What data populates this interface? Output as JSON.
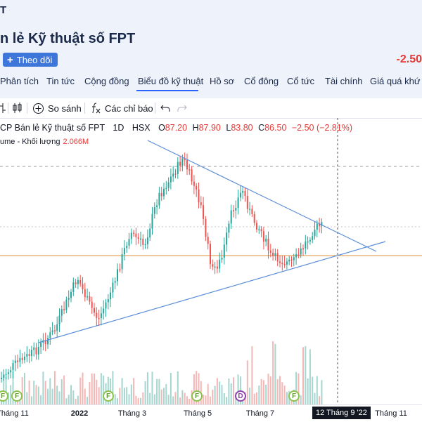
{
  "header": {
    "brand": "T",
    "company": "n lẻ Kỹ thuật số FPT",
    "follow_label": "Theo dõi",
    "change": "-2.50"
  },
  "nav": {
    "tabs": [
      "Phân tích",
      "Tin tức",
      "Cộng đồng",
      "Biểu đồ kỹ thuật",
      "Hồ sơ",
      "Cổ đông",
      "Cổ tức",
      "Tài chính",
      "Giá quá khứ"
    ],
    "active_tab": "Biểu đồ kỹ thuật"
  },
  "toolbar": {
    "compare_label": "So sánh",
    "indicators_label": "Các chỉ báo",
    "icons": [
      "candle-style-icon",
      "plus-circle-icon",
      "fx-icon",
      "undo-icon",
      "redo-icon"
    ]
  },
  "legend": {
    "symbol": "CP Bán lẻ Kỹ thuật số FPT",
    "interval": "1D",
    "exchange": "HSX",
    "o_label": "O",
    "o_value": "87.20",
    "h_label": "H",
    "h_value": "87.90",
    "l_label": "L",
    "l_value": "83.80",
    "c_label": "C",
    "c_value": "86.50",
    "change": "−2.50 (−2.81%)",
    "volume_label": "ume - Khối lượng",
    "volume_value": "2.066M"
  },
  "xaxis": {
    "ticks": [
      "Tháng 11",
      "2022",
      "Tháng 3",
      "Tháng 5",
      "Tháng 7",
      "Tháng 11"
    ],
    "crosshair_date": "12 Tháng 9 '22"
  },
  "events": [
    "F",
    "F",
    "F",
    "D",
    "F",
    "F"
  ],
  "colors": {
    "up": "#26a69a",
    "down": "#ef5350",
    "trend": "#5b8dd9",
    "level": "#e0913a",
    "accent": "#2962ff"
  }
}
